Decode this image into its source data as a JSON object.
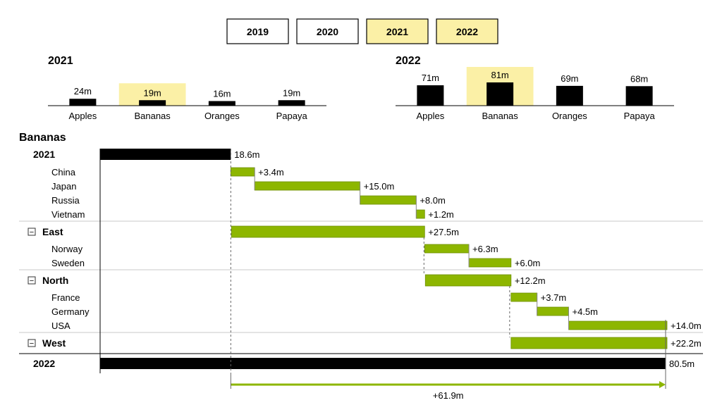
{
  "year_buttons": [
    {
      "label": "2019",
      "selected": false
    },
    {
      "label": "2020",
      "selected": false
    },
    {
      "label": "2021",
      "selected": true
    },
    {
      "label": "2022",
      "selected": true
    }
  ],
  "colors": {
    "highlight": "#fbf0a6",
    "bar": "#000000",
    "increase": "#8db600",
    "increase_border": "#6e8f00",
    "separator": "#c8c8c8"
  },
  "chart_data": [
    {
      "type": "bar",
      "title": "2021",
      "categories": [
        "Apples",
        "Bananas",
        "Oranges",
        "Papaya"
      ],
      "values": [
        24,
        19,
        16,
        19
      ],
      "value_labels": [
        "24m",
        "19m",
        "16m",
        "19m"
      ],
      "highlighted": "Bananas"
    },
    {
      "type": "bar",
      "title": "2022",
      "categories": [
        "Apples",
        "Bananas",
        "Oranges",
        "Papaya"
      ],
      "values": [
        71,
        81,
        69,
        68
      ],
      "value_labels": [
        "71m",
        "81m",
        "69m",
        "68m"
      ],
      "highlighted": "Bananas"
    },
    {
      "type": "waterfall",
      "title": "Bananas",
      "xlim": [
        0,
        80.5
      ],
      "rows": [
        {
          "kind": "total",
          "label": "2021",
          "value": 18.6,
          "value_label": "18.6m"
        },
        {
          "kind": "item",
          "label": "China",
          "value": 3.4,
          "value_label": "+3.4m"
        },
        {
          "kind": "item",
          "label": "Japan",
          "value": 15.0,
          "value_label": "+15.0m"
        },
        {
          "kind": "item",
          "label": "Russia",
          "value": 8.0,
          "value_label": "+8.0m"
        },
        {
          "kind": "item",
          "label": "Vietnam",
          "value": 1.2,
          "value_label": "+1.2m"
        },
        {
          "kind": "group",
          "label": "East",
          "value": 27.5,
          "value_label": "+27.5m",
          "collapse_symbol": "−"
        },
        {
          "kind": "item",
          "label": "Norway",
          "value": 6.3,
          "value_label": "+6.3m"
        },
        {
          "kind": "item",
          "label": "Sweden",
          "value": 6.0,
          "value_label": "+6.0m"
        },
        {
          "kind": "group",
          "label": "North",
          "value": 12.2,
          "value_label": "+12.2m",
          "collapse_symbol": "−"
        },
        {
          "kind": "item",
          "label": "France",
          "value": 3.7,
          "value_label": "+3.7m"
        },
        {
          "kind": "item",
          "label": "Germany",
          "value": 4.5,
          "value_label": "+4.5m"
        },
        {
          "kind": "item",
          "label": "USA",
          "value": 14.0,
          "value_label": "+14.0m"
        },
        {
          "kind": "group",
          "label": "West",
          "value": 22.2,
          "value_label": "+22.2m",
          "collapse_symbol": "−"
        },
        {
          "kind": "total",
          "label": "2022",
          "value": 80.5,
          "value_label": "80.5m"
        }
      ],
      "difference": {
        "value": 61.9,
        "value_label": "+61.9m"
      }
    }
  ]
}
